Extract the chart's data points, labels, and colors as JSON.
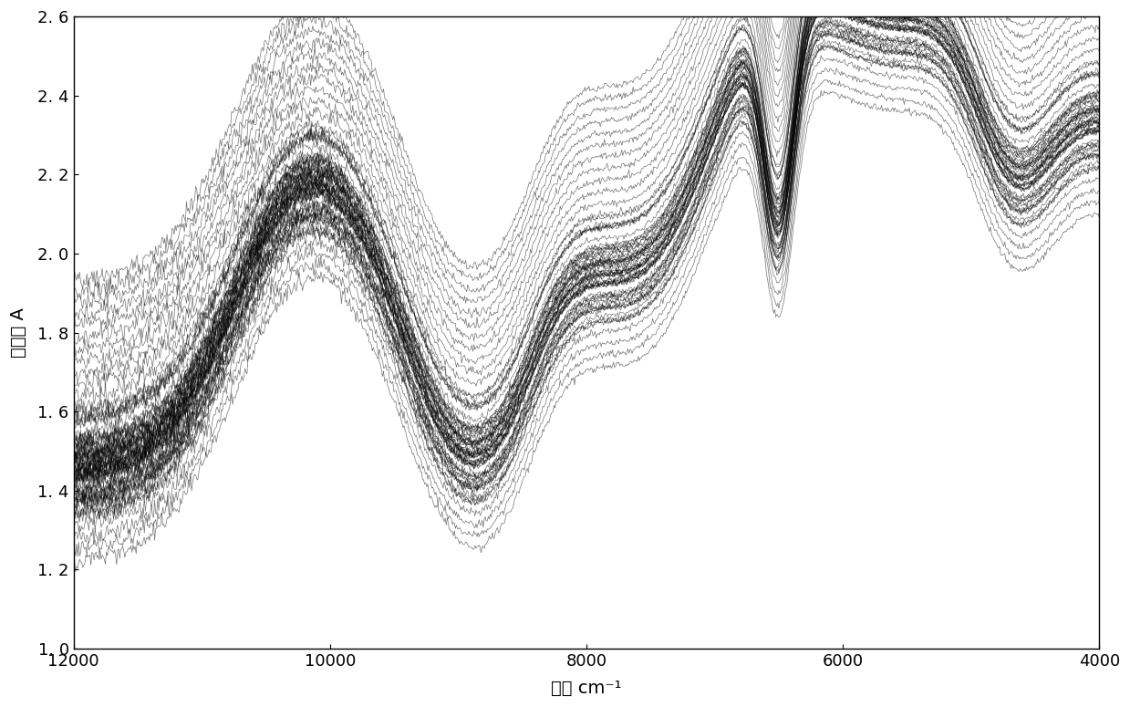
{
  "xmin": 4000,
  "xmax": 12000,
  "ymin": 1.0,
  "ymax": 2.6,
  "xlabel": "波数 cm⁻¹",
  "ylabel": "吸光度 A",
  "xticks": [
    12000,
    10000,
    8000,
    6000,
    4000
  ],
  "yticks": [
    1.0,
    1.2,
    1.4,
    1.6,
    1.8,
    2.0,
    2.2,
    2.4,
    2.6
  ],
  "ytick_labels": [
    "1. 0",
    "1. 2",
    "1. 4",
    "1. 6",
    "1. 8",
    "2. 0",
    "2. 2",
    "2. 4",
    "2. 6"
  ],
  "n_curves": 70,
  "background_color": "#ffffff",
  "line_color": "#000000",
  "line_alpha": 0.55,
  "line_width": 0.5,
  "figsize": [
    12.39,
    7.75
  ],
  "dpi": 100,
  "base_min": 1.22,
  "base_max": 1.93,
  "noise_scale": 0.004
}
